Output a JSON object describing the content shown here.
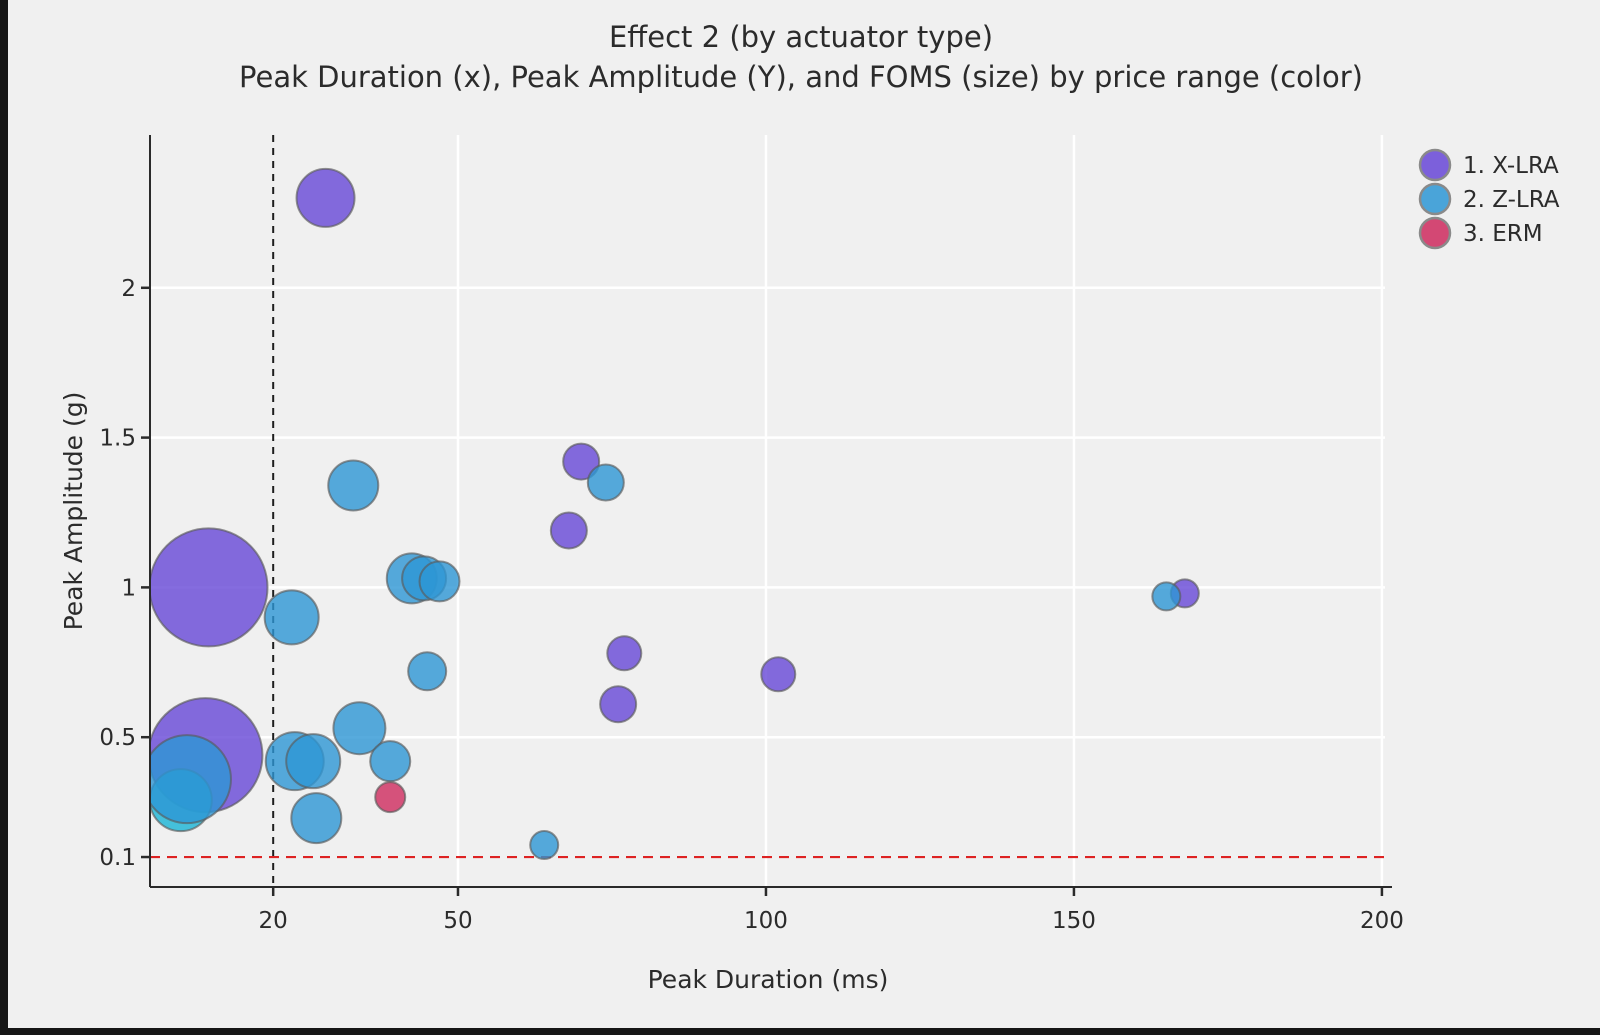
{
  "title": "Effect 2 (by actuator type)",
  "subtitle": "Peak Duration (x), Peak Amplitude (Y), and FOMS (size) by price range (color)",
  "colors": {
    "background": "#f0f0f0",
    "gridline": "#ffffff",
    "spine": "#2a2a2a",
    "bubble_stroke": "#5a5a5a",
    "vline": "#1d1d1d",
    "hline": "#dd2222",
    "window_edge": "#161616"
  },
  "chart_data": {
    "type": "scatter",
    "title": "Effect 2 (by actuator type)",
    "subtitle": "Peak Duration (x), Peak Amplitude (Y), and FOMS (size) by price range (color)",
    "xlabel": "Peak Duration (ms)",
    "ylabel": "Peak Amplitude (g)",
    "xlim": [
      0,
      200.5
    ],
    "ylim": [
      0,
      2.51
    ],
    "x_ticks": [
      20,
      50,
      100,
      150,
      200
    ],
    "x_tick_labels": [
      "20",
      "50",
      "100",
      "150",
      "200"
    ],
    "y_ticks": [
      0.1,
      0.5,
      1,
      1.5,
      2
    ],
    "y_tick_labels": [
      "0.1",
      "0.5",
      "1",
      "1.5",
      "2"
    ],
    "grid": true,
    "legend_position": "upper right",
    "size_encoding": "FOMS (bubble radius in px)",
    "reference_lines": [
      {
        "axis": "x",
        "value": 20,
        "style": "dashed",
        "color": "#1d1d1d"
      },
      {
        "axis": "y",
        "value": 0.1,
        "style": "dashed",
        "color": "#dd2222"
      }
    ],
    "series": [
      {
        "name": "1. X-LRA",
        "color": "#6747D7",
        "points": [
          {
            "x": 9.5,
            "y": 1.0,
            "r": 59
          },
          {
            "x": 9,
            "y": 0.44,
            "r": 57
          },
          {
            "x": 28.5,
            "y": 2.3,
            "r": 29
          },
          {
            "x": 70,
            "y": 1.42,
            "r": 18
          },
          {
            "x": 68,
            "y": 1.19,
            "r": 18
          },
          {
            "x": 77,
            "y": 0.78,
            "r": 17
          },
          {
            "x": 76,
            "y": 0.61,
            "r": 18
          },
          {
            "x": 102,
            "y": 0.71,
            "r": 17
          },
          {
            "x": 168,
            "y": 0.98,
            "r": 14
          }
        ]
      },
      {
        "name": "2. Z-LRA",
        "color": "#2D96D5",
        "points": [
          {
            "x": 5,
            "y": 0.29,
            "r": 31,
            "color": "#19B4D6"
          },
          {
            "x": 6,
            "y": 0.36,
            "r": 44
          },
          {
            "x": 33,
            "y": 1.34,
            "r": 25
          },
          {
            "x": 74,
            "y": 1.35,
            "r": 18
          },
          {
            "x": 42.5,
            "y": 1.03,
            "r": 25
          },
          {
            "x": 44.5,
            "y": 1.03,
            "r": 22
          },
          {
            "x": 47,
            "y": 1.02,
            "r": 20
          },
          {
            "x": 23,
            "y": 0.9,
            "r": 27
          },
          {
            "x": 165,
            "y": 0.97,
            "r": 14
          },
          {
            "x": 45,
            "y": 0.72,
            "r": 19
          },
          {
            "x": 34,
            "y": 0.53,
            "r": 26
          },
          {
            "x": 23.5,
            "y": 0.42,
            "r": 29
          },
          {
            "x": 26.5,
            "y": 0.42,
            "r": 27
          },
          {
            "x": 39,
            "y": 0.42,
            "r": 20
          },
          {
            "x": 27,
            "y": 0.23,
            "r": 25
          },
          {
            "x": 64,
            "y": 0.14,
            "r": 14
          }
        ]
      },
      {
        "name": "3. ERM",
        "color": "#CE2A5E",
        "points": [
          {
            "x": 39,
            "y": 0.3,
            "r": 15
          }
        ]
      }
    ]
  }
}
